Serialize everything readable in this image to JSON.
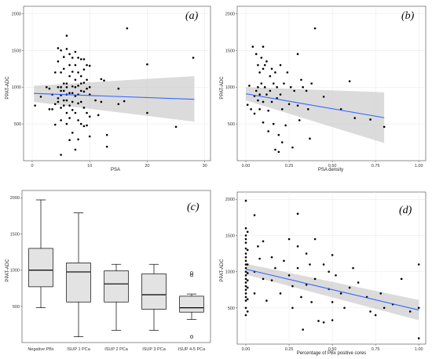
{
  "chart_data": [
    {
      "id": "a",
      "type": "scatter",
      "panel_label": "(a)",
      "xlabel": "PSA",
      "ylabel": "PPAT-ADC",
      "xlim": [
        -1.5,
        31
      ],
      "ylim": [
        0,
        2100
      ],
      "xticks": [
        0,
        10,
        20,
        30
      ],
      "yticks": [
        500,
        1000,
        1500,
        2000
      ],
      "grid": true,
      "regression": {
        "x": [
          0.3,
          28.2
        ],
        "y": [
          915,
          835
        ],
        "band_lower": [
          800,
          530
        ],
        "band_upper": [
          1020,
          1150
        ]
      },
      "points": [
        [
          0.5,
          750
        ],
        [
          1.5,
          870
        ],
        [
          2.5,
          1000
        ],
        [
          3,
          980
        ],
        [
          3,
          700
        ],
        [
          3.5,
          900
        ],
        [
          3.5,
          700
        ],
        [
          4,
          1200
        ],
        [
          4,
          770
        ],
        [
          4,
          490
        ],
        [
          4.5,
          1530
        ],
        [
          4.5,
          1350
        ],
        [
          4.5,
          1000
        ],
        [
          4.5,
          850
        ],
        [
          4.5,
          800
        ],
        [
          5,
          1500
        ],
        [
          5,
          1200
        ],
        [
          5,
          1000
        ],
        [
          5,
          950
        ],
        [
          5,
          890
        ],
        [
          5,
          720
        ],
        [
          5,
          550
        ],
        [
          5,
          80
        ],
        [
          5.5,
          1410
        ],
        [
          5.5,
          1250
        ],
        [
          5.5,
          1050
        ],
        [
          5.5,
          950
        ],
        [
          5.5,
          820
        ],
        [
          5.5,
          750
        ],
        [
          6,
          1700
        ],
        [
          6,
          1520
        ],
        [
          6,
          1050
        ],
        [
          6,
          1000
        ],
        [
          6,
          900
        ],
        [
          6,
          820
        ],
        [
          6,
          650
        ],
        [
          6,
          500
        ],
        [
          6.5,
          1450
        ],
        [
          6.5,
          1300
        ],
        [
          6.5,
          1150
        ],
        [
          6.5,
          920
        ],
        [
          6.5,
          750
        ],
        [
          6.5,
          580
        ],
        [
          6.5,
          280
        ],
        [
          7,
          1400
        ],
        [
          7,
          1210
        ],
        [
          7,
          1010
        ],
        [
          7,
          920
        ],
        [
          7,
          800
        ],
        [
          7,
          690
        ],
        [
          7,
          380
        ],
        [
          7.5,
          1480
        ],
        [
          7.5,
          1300
        ],
        [
          7.5,
          1100
        ],
        [
          7.5,
          1000
        ],
        [
          7.5,
          880
        ],
        [
          7.5,
          650
        ],
        [
          7.5,
          150
        ],
        [
          8,
          1400
        ],
        [
          8,
          1200
        ],
        [
          8,
          1020
        ],
        [
          8,
          900
        ],
        [
          8,
          780
        ],
        [
          8,
          550
        ],
        [
          8,
          290
        ],
        [
          8.5,
          1380
        ],
        [
          8.5,
          1150
        ],
        [
          8.5,
          1050
        ],
        [
          8.5,
          950
        ],
        [
          8.5,
          800
        ],
        [
          8.5,
          500
        ],
        [
          9,
          1380
        ],
        [
          9,
          1240
        ],
        [
          9,
          1060
        ],
        [
          9,
          940
        ],
        [
          9,
          720
        ],
        [
          9,
          470
        ],
        [
          9.5,
          1300
        ],
        [
          9.5,
          1100
        ],
        [
          9.5,
          980
        ],
        [
          9.5,
          650
        ],
        [
          9.5,
          480
        ],
        [
          10,
          1290
        ],
        [
          10,
          1000
        ],
        [
          10,
          900
        ],
        [
          10,
          600
        ],
        [
          10,
          330
        ],
        [
          11,
          820
        ],
        [
          11.5,
          620
        ],
        [
          12,
          1110
        ],
        [
          12,
          800
        ],
        [
          12.5,
          1090
        ],
        [
          13,
          350
        ],
        [
          13,
          190
        ],
        [
          15,
          980
        ],
        [
          15,
          770
        ],
        [
          16,
          810
        ],
        [
          16.5,
          1800
        ],
        [
          20,
          1310
        ],
        [
          20,
          650
        ],
        [
          25,
          460
        ],
        [
          28,
          1400
        ]
      ]
    },
    {
      "id": "b",
      "type": "scatter",
      "panel_label": "(b)",
      "xlabel": "PSA density",
      "ylabel": "PPAT-ADC",
      "xlim": [
        -0.05,
        1.04
      ],
      "ylim": [
        0,
        2100
      ],
      "xticks": [
        "0.00",
        "0.25",
        "0.50",
        "0.75",
        "1.00"
      ],
      "yticks": [
        500,
        1000,
        1500,
        2000
      ],
      "grid": true,
      "regression": {
        "x": [
          0.0,
          0.8
        ],
        "y": [
          910,
          585
        ],
        "band_lower": [
          820,
          240
        ],
        "band_upper": [
          1000,
          930
        ]
      },
      "points": [
        [
          0.01,
          760
        ],
        [
          0.02,
          1020
        ],
        [
          0.03,
          700
        ],
        [
          0.04,
          1550
        ],
        [
          0.05,
          880
        ],
        [
          0.05,
          640
        ],
        [
          0.06,
          1450
        ],
        [
          0.06,
          950
        ],
        [
          0.07,
          1300
        ],
        [
          0.07,
          1000
        ],
        [
          0.07,
          820
        ],
        [
          0.08,
          1200
        ],
        [
          0.08,
          900
        ],
        [
          0.08,
          700
        ],
        [
          0.09,
          1400
        ],
        [
          0.09,
          1050
        ],
        [
          0.1,
          1550
        ],
        [
          0.1,
          1250
        ],
        [
          0.1,
          800
        ],
        [
          0.1,
          520
        ],
        [
          0.11,
          1300
        ],
        [
          0.11,
          1000
        ],
        [
          0.12,
          1350
        ],
        [
          0.12,
          900
        ],
        [
          0.13,
          680
        ],
        [
          0.13,
          400
        ],
        [
          0.14,
          1150
        ],
        [
          0.14,
          950
        ],
        [
          0.15,
          1250
        ],
        [
          0.15,
          800
        ],
        [
          0.16,
          1050
        ],
        [
          0.16,
          500
        ],
        [
          0.17,
          1200
        ],
        [
          0.17,
          150
        ],
        [
          0.18,
          1000
        ],
        [
          0.18,
          850
        ],
        [
          0.19,
          350
        ],
        [
          0.19,
          120
        ],
        [
          0.2,
          1300
        ],
        [
          0.2,
          900
        ],
        [
          0.21,
          700
        ],
        [
          0.21,
          250
        ],
        [
          0.22,
          1050
        ],
        [
          0.23,
          480
        ],
        [
          0.24,
          1200
        ],
        [
          0.25,
          770
        ],
        [
          0.26,
          1000
        ],
        [
          0.27,
          180
        ],
        [
          0.28,
          950
        ],
        [
          0.3,
          1450
        ],
        [
          0.3,
          750
        ],
        [
          0.31,
          550
        ],
        [
          0.32,
          1100
        ],
        [
          0.33,
          1000
        ],
        [
          0.35,
          950
        ],
        [
          0.36,
          700
        ],
        [
          0.37,
          300
        ],
        [
          0.38,
          1050
        ],
        [
          0.4,
          1800
        ],
        [
          0.45,
          870
        ],
        [
          0.55,
          700
        ],
        [
          0.6,
          1080
        ],
        [
          0.63,
          580
        ],
        [
          0.72,
          560
        ],
        [
          0.8,
          460
        ]
      ]
    },
    {
      "id": "c",
      "type": "box",
      "panel_label": "(c)",
      "xlabel": "",
      "ylabel": "PPAT-ADC",
      "ylim": [
        0,
        2100
      ],
      "yticks": [
        500,
        1000,
        1500,
        2000
      ],
      "grid": false,
      "categories": [
        "Negative PBx",
        "ISUP 1 PCa",
        "ISUP 2 PCa",
        "ISUP 3 PCa",
        "ISUP 4-5 PCa"
      ],
      "boxes": [
        {
          "min": 480,
          "q1": 770,
          "median": 1000,
          "q3": 1300,
          "max": 1970,
          "outliers": []
        },
        {
          "min": 80,
          "q1": 560,
          "median": 975,
          "q3": 1100,
          "max": 1790,
          "outliers": []
        },
        {
          "min": 170,
          "q1": 560,
          "median": 810,
          "q3": 990,
          "max": 1080,
          "outliers": []
        },
        {
          "min": 170,
          "q1": 460,
          "median": 660,
          "q3": 950,
          "max": 1080,
          "outliers": []
        },
        {
          "min": 320,
          "q1": 420,
          "median": 480,
          "q3": 640,
          "max": 670,
          "outliers": [
            960,
            930,
            80
          ]
        }
      ]
    },
    {
      "id": "d",
      "type": "scatter",
      "panel_label": "(d)",
      "xlabel": "Percentage of PBx positive cores",
      "ylabel": "PPAT-ADC",
      "xlim": [
        -0.05,
        1.04
      ],
      "ylim": [
        0,
        2100
      ],
      "xticks": [
        "0.00",
        "0.25",
        "0.50",
        "0.75",
        "1.00"
      ],
      "yticks": [
        500,
        1000,
        1500,
        2000
      ],
      "grid": true,
      "regression": {
        "x": [
          0.0,
          1.0
        ],
        "y": [
          1035,
          470
        ],
        "band_lower": [
          960,
          330
        ],
        "band_upper": [
          1110,
          610
        ]
      },
      "points": [
        [
          0,
          1980
        ],
        [
          0,
          1600
        ],
        [
          0,
          1500
        ],
        [
          0,
          1450
        ],
        [
          0,
          1400
        ],
        [
          0,
          1320
        ],
        [
          0,
          1250
        ],
        [
          0,
          1200
        ],
        [
          0,
          1150
        ],
        [
          0,
          1100
        ],
        [
          0,
          1050
        ],
        [
          0,
          1000
        ],
        [
          0,
          950
        ],
        [
          0,
          900
        ],
        [
          0,
          850
        ],
        [
          0,
          800
        ],
        [
          0,
          750
        ],
        [
          0,
          700
        ],
        [
          0,
          650
        ],
        [
          0,
          600
        ],
        [
          0,
          500
        ],
        [
          0,
          400
        ],
        [
          0.01,
          1550
        ],
        [
          0.01,
          1300
        ],
        [
          0.01,
          1100
        ],
        [
          0.01,
          980
        ],
        [
          0.01,
          880
        ],
        [
          0.01,
          780
        ],
        [
          0.01,
          620
        ],
        [
          0.01,
          450
        ],
        [
          0.05,
          1780
        ],
        [
          0.05,
          1000
        ],
        [
          0.05,
          700
        ],
        [
          0.07,
          1350
        ],
        [
          0.08,
          1180
        ],
        [
          0.1,
          1420
        ],
        [
          0.1,
          900
        ],
        [
          0.12,
          600
        ],
        [
          0.15,
          1200
        ],
        [
          0.15,
          880
        ],
        [
          0.17,
          1050
        ],
        [
          0.2,
          700
        ],
        [
          0.22,
          1150
        ],
        [
          0.25,
          1450
        ],
        [
          0.25,
          950
        ],
        [
          0.27,
          800
        ],
        [
          0.27,
          500
        ],
        [
          0.3,
          1800
        ],
        [
          0.3,
          1350
        ],
        [
          0.3,
          1050
        ],
        [
          0.32,
          650
        ],
        [
          0.33,
          200
        ],
        [
          0.35,
          1250
        ],
        [
          0.35,
          820
        ],
        [
          0.37,
          1100
        ],
        [
          0.38,
          580
        ],
        [
          0.4,
          1450
        ],
        [
          0.4,
          900
        ],
        [
          0.42,
          320
        ],
        [
          0.45,
          1100
        ],
        [
          0.45,
          300
        ],
        [
          0.48,
          1000
        ],
        [
          0.48,
          760
        ],
        [
          0.5,
          1230
        ],
        [
          0.5,
          580
        ],
        [
          0.5,
          330
        ],
        [
          0.52,
          950
        ],
        [
          0.55,
          700
        ],
        [
          0.57,
          500
        ],
        [
          0.6,
          780
        ],
        [
          0.62,
          1050
        ],
        [
          0.65,
          850
        ],
        [
          0.7,
          650
        ],
        [
          0.72,
          450
        ],
        [
          0.75,
          400
        ],
        [
          0.78,
          700
        ],
        [
          0.8,
          500
        ],
        [
          0.85,
          550
        ],
        [
          0.9,
          900
        ],
        [
          0.95,
          450
        ],
        [
          1,
          1100
        ],
        [
          1,
          500
        ],
        [
          1,
          80
        ]
      ]
    }
  ]
}
